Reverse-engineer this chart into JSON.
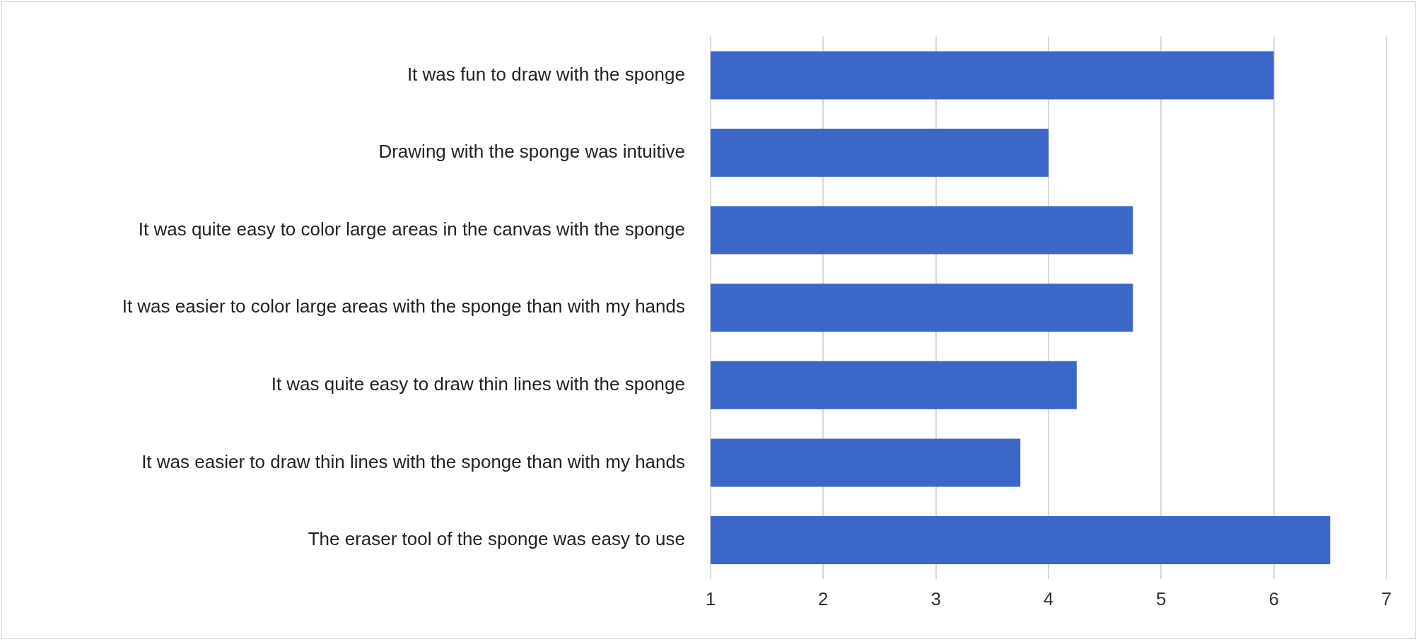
{
  "chart_data": {
    "type": "bar",
    "orientation": "horizontal",
    "categories": [
      "It was fun to draw with the sponge",
      "Drawing with the sponge was intuitive",
      "It was quite easy to color large areas in the canvas with the sponge",
      "It was easier to color large areas with the sponge than with my hands",
      "It was quite easy to draw thin lines with the sponge",
      "It was easier to draw thin lines with the sponge than with my hands",
      "The eraser tool of the sponge was easy to use"
    ],
    "values": [
      6,
      4,
      4.75,
      4.75,
      4.25,
      3.75,
      6.5
    ],
    "color": "#3b68c8",
    "xlim": [
      1,
      7
    ],
    "xticks": [
      1,
      2,
      3,
      4,
      5,
      6,
      7
    ],
    "grid": "x",
    "legend": false
  }
}
